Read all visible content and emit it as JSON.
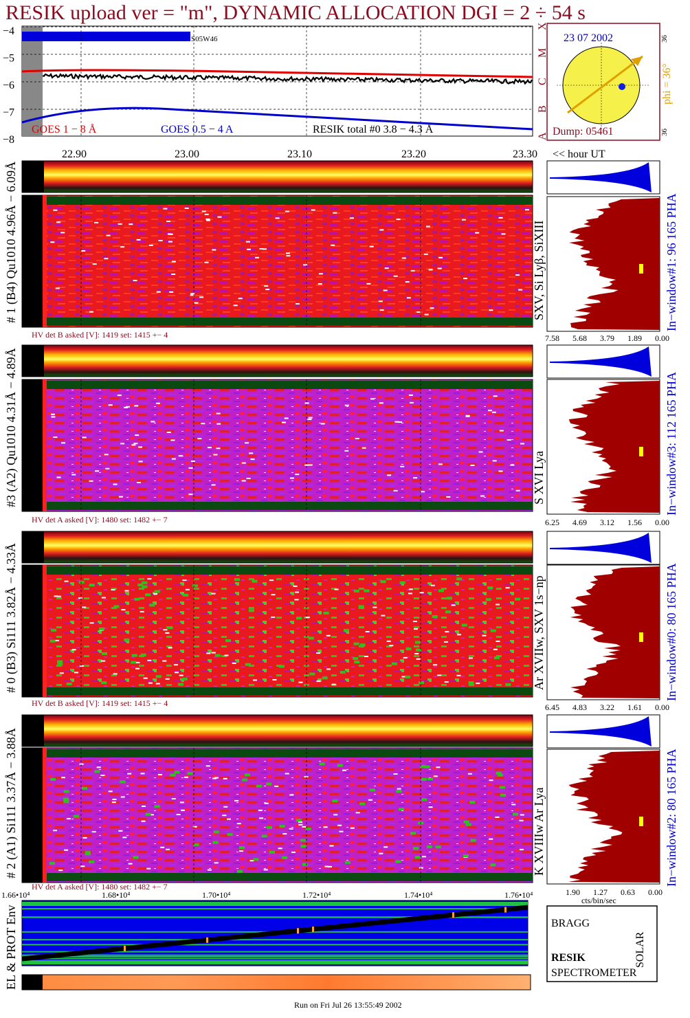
{
  "header": {
    "title": "RESIK upload ver = \"m\", DYNAMIC ALLOCATION  DGI =   2 ÷  54 s"
  },
  "colors": {
    "dark_red": "#8b0a1e",
    "goes_long": "#e00000",
    "goes_short": "#0000cc",
    "sun": "#f5f04a",
    "orange": "#e0a000",
    "spectrum_fill": "#a00000",
    "pha_fill": "#0000dd"
  },
  "goes_panel": {
    "y_ticks": [
      "−4",
      "−5",
      "−6",
      "−7",
      "−8"
    ],
    "flare_label": "S05W46",
    "legend_goes_long": "GOES 1 − 8 Å",
    "legend_goes_short": "GOES 0.5 − 4 A",
    "legend_resik": "RESIK total #0  3.8 − 4.3 Å",
    "class_letters": [
      "X",
      "M",
      "C",
      "B",
      "A"
    ]
  },
  "sun_panel": {
    "date": "23 07 2002",
    "phi": "phi = 36°",
    "corner_tl": "36",
    "corner_bl": "36",
    "dump": "Dump: 05461"
  },
  "time_axis": {
    "ticks": [
      "22.90",
      "23.00",
      "23.10",
      "23.20",
      "23.30"
    ],
    "label": "<< hour UT"
  },
  "detectors": [
    {
      "label": "# 1 (B4) Qu1010 4.96Å − 6.09Å",
      "lines": "SXV, Si Lyβ, SiXIII",
      "hv": "HV det B asked [V]:  1419 set:  1415 +−    4",
      "window": "In−window#1:   96 165  PHA",
      "ticks": [
        "7.58",
        "5.68",
        "3.79",
        "1.89",
        "0.00"
      ]
    },
    {
      "label": "#3 (A2) Qu1010  4.31Å − 4.89Å",
      "lines": "S XVI Lya",
      "hv": "HV det A asked [V]:  1480 set:  1482 +−    7",
      "window": "In−window#3:  112 165  PHA",
      "ticks": [
        "6.25",
        "4.69",
        "3.12",
        "1.56",
        "0.00"
      ]
    },
    {
      "label": "# 0 (B3) Si111  3.82Å − 4.33Å",
      "lines": "Ar XVIIw,  SXV 1s−np",
      "hv": "HV det B asked [V]:  1419 set:  1415 +−    4",
      "window": "In−window#0:   80 165  PHA",
      "ticks": [
        "6.45",
        "4.83",
        "3.22",
        "1.61",
        "0.00"
      ]
    },
    {
      "label": "# 2 (A1) Si111  3.37Å − 3.88Å",
      "lines": "K XVIIIw  Ar Lya",
      "hv": "HV det A asked [V]:  1480 set:  1482 +−    7",
      "window": "In−window#2:   80 165  PHA",
      "ticks": [
        "1.90",
        "1.27",
        "0.63",
        "0.00"
      ],
      "xunit": "cts/bin/sec"
    }
  ],
  "bottom_axis": {
    "ticks": [
      "1.66•10⁴",
      "1.68•10⁴",
      "1.70•10⁴",
      "1.72•10⁴",
      "1.74•10⁴",
      "1.76•10⁴"
    ]
  },
  "env_panel": {
    "label": "EL & PROT Env"
  },
  "logo": {
    "letters": [
      "BRAGG",
      "RESIK",
      "SOLAR"
    ],
    "caption": "SPECTROMETER"
  },
  "footer": {
    "run_text": "Run on Fri Jul 26 13:55:49 2002"
  }
}
